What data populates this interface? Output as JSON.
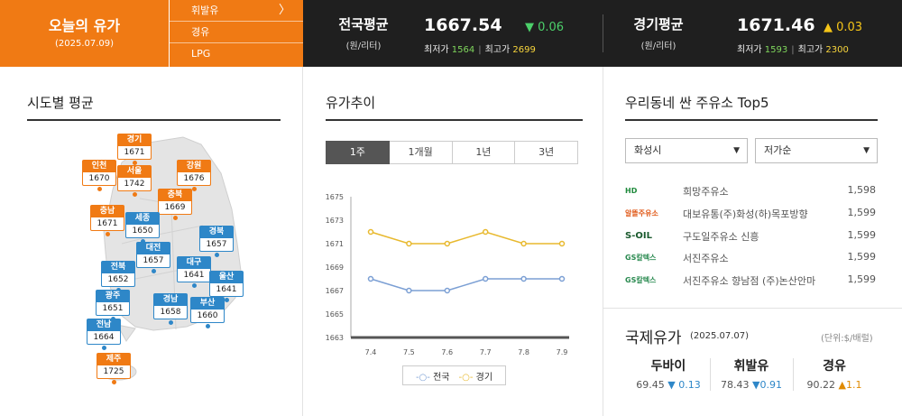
{
  "brand": {
    "title": "오늘의 유가",
    "date": "(2025.07.09)"
  },
  "fuel_nav": [
    {
      "label": "휘발유",
      "active": true
    },
    {
      "label": "경유"
    },
    {
      "label": "LPG"
    }
  ],
  "national": {
    "label": "전국평균",
    "unit": "(원/리터)",
    "price": "1667.54",
    "change": "▼ 0.06",
    "min_label": "최저가",
    "min": "1564",
    "max_label": "최고가",
    "max": "2699"
  },
  "gyeonggi": {
    "label": "경기평균",
    "unit": "(원/리터)",
    "price": "1671.46",
    "change": "▲ 0.03",
    "min_label": "최저가",
    "min": "1593",
    "max_label": "최고가",
    "max": "2300"
  },
  "regional": {
    "title": "시도별 평균",
    "markers": [
      {
        "name": "경기",
        "value": "1671",
        "color": "orange"
      },
      {
        "name": "인천",
        "value": "1670",
        "color": "orange"
      },
      {
        "name": "서울",
        "value": "1742",
        "color": "orange"
      },
      {
        "name": "강원",
        "value": "1676",
        "color": "orange"
      },
      {
        "name": "충북",
        "value": "1669",
        "color": "orange"
      },
      {
        "name": "충남",
        "value": "1671",
        "color": "orange"
      },
      {
        "name": "세종",
        "value": "1650",
        "color": "blue"
      },
      {
        "name": "경북",
        "value": "1657",
        "color": "blue"
      },
      {
        "name": "대전",
        "value": "1657",
        "color": "blue"
      },
      {
        "name": "대구",
        "value": "1641",
        "color": "blue"
      },
      {
        "name": "전북",
        "value": "1652",
        "color": "blue"
      },
      {
        "name": "울산",
        "value": "1641",
        "color": "blue"
      },
      {
        "name": "광주",
        "value": "1651",
        "color": "blue"
      },
      {
        "name": "경남",
        "value": "1658",
        "color": "blue"
      },
      {
        "name": "부산",
        "value": "1660",
        "color": "blue"
      },
      {
        "name": "전남",
        "value": "1664",
        "color": "blue"
      },
      {
        "name": "제주",
        "value": "1725",
        "color": "orange"
      }
    ]
  },
  "trend": {
    "title": "유가추이",
    "tabs": [
      {
        "label": "1주",
        "active": true
      },
      {
        "label": "1개월"
      },
      {
        "label": "1년"
      },
      {
        "label": "3년"
      }
    ]
  },
  "chart_data": {
    "type": "line",
    "x": [
      "7.4",
      "7.5",
      "7.6",
      "7.7",
      "7.8",
      "7.9"
    ],
    "series": [
      {
        "name": "전국",
        "color": "#7b9fd4",
        "values": [
          1668,
          1667,
          1667,
          1668,
          1668,
          1668
        ]
      },
      {
        "name": "경기",
        "color": "#e8b92e",
        "values": [
          1672,
          1671,
          1671,
          1672,
          1671,
          1671
        ]
      }
    ],
    "yticks": [
      1675,
      1673,
      1671,
      1669,
      1667,
      1665,
      1663
    ],
    "ylim": [
      1663,
      1675
    ],
    "grid": false,
    "legend": "bottom"
  },
  "top5": {
    "title": "우리동네 싼 주유소 Top5",
    "region_select": "화성시",
    "order_select": "저가순",
    "stations": [
      {
        "brand": "HD",
        "brand_color": "#1f8a3c",
        "name": "희망주유소",
        "price": "1,598"
      },
      {
        "brand": "알뜰주유소",
        "brand_color": "#e05a1a",
        "name": "대보유통(주)화성(하)목포방향",
        "price": "1,599"
      },
      {
        "brand": "S-OIL",
        "brand_color": "#1a5a2e",
        "name": "구도일주유소 신흥",
        "price": "1,599"
      },
      {
        "brand": "GS칼텍스",
        "brand_color": "#2a8a50",
        "name": "서진주유소",
        "price": "1,599"
      },
      {
        "brand": "GS칼텍스",
        "brand_color": "#2a8a50",
        "name": "서진주유소 향남점 (주)논산안마",
        "price": "1,599"
      }
    ]
  },
  "international": {
    "title": "국제유가",
    "date": "(2025.07.07)",
    "unit": "(단위:$/배럴)",
    "items": [
      {
        "name": "두바이",
        "value": "69.45",
        "change": "▼ 0.13",
        "dir": "down"
      },
      {
        "name": "휘발유",
        "value": "78.43",
        "change": "▼0.91",
        "dir": "down"
      },
      {
        "name": "경유",
        "value": "90.22",
        "change": "▲1.1",
        "dir": "up"
      }
    ]
  }
}
